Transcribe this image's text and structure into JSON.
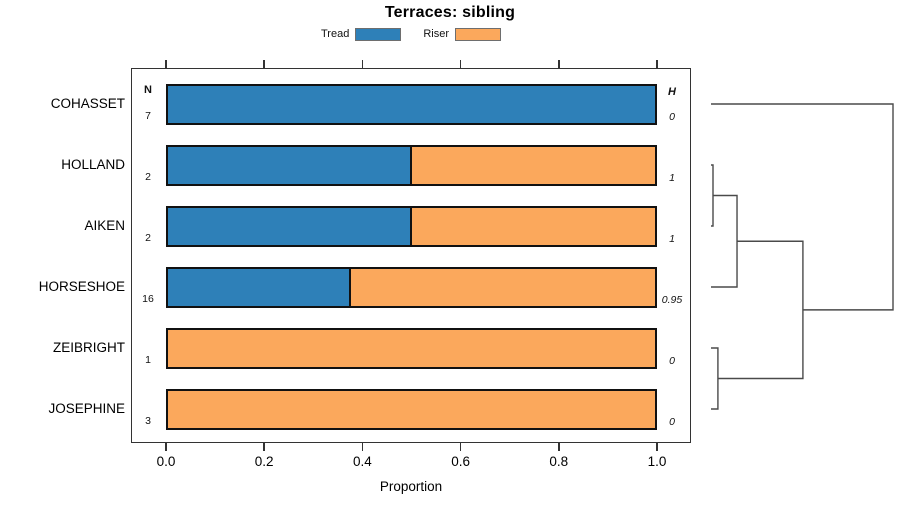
{
  "chart_data": {
    "type": "bar",
    "orientation": "horizontal",
    "stacked": true,
    "title": "Terraces: sibling",
    "xlabel": "Proportion",
    "xlim": [
      0,
      1
    ],
    "xticks": [
      0.0,
      0.2,
      0.4,
      0.6,
      0.8,
      1.0
    ],
    "xtick_labels": [
      "0.0",
      "0.2",
      "0.4",
      "0.6",
      "0.8",
      "1.0"
    ],
    "grid": false,
    "categories": [
      "COHASSET",
      "HOLLAND",
      "AIKEN",
      "HORSESHOE",
      "ZEIBRIGHT",
      "JOSEPHINE"
    ],
    "series": [
      {
        "name": "Tread",
        "color": "#2E80B8",
        "values": [
          1.0,
          0.5,
          0.5,
          0.375,
          0.0,
          0.0
        ]
      },
      {
        "name": "Riser",
        "color": "#FBA85C",
        "values": [
          0.0,
          0.5,
          0.5,
          0.625,
          1.0,
          1.0
        ]
      }
    ],
    "n_column": {
      "header": "N",
      "values": [
        "7",
        "2",
        "2",
        "16",
        "1",
        "3"
      ]
    },
    "h_column": {
      "header": "H",
      "values": [
        "0",
        "1",
        "1",
        "0.95",
        "0",
        "0"
      ]
    },
    "legend": {
      "position": "top",
      "entries": [
        "Tread",
        "Riser"
      ]
    },
    "dendrogram": {
      "side": "right",
      "leaves": [
        "COHASSET",
        "HOLLAND",
        "AIKEN",
        "HORSESHOE",
        "ZEIBRIGHT",
        "JOSEPHINE"
      ],
      "merges": [
        {
          "id": "m1",
          "children": [
            "HOLLAND",
            "AIKEN"
          ],
          "height": 0.011
        },
        {
          "id": "m2",
          "children": [
            "ZEIBRIGHT",
            "JOSEPHINE"
          ],
          "height": 0.038
        },
        {
          "id": "m3",
          "children": [
            "m1",
            "HORSESHOE"
          ],
          "height": 0.143
        },
        {
          "id": "m4",
          "children": [
            "m3",
            "m2"
          ],
          "height": 0.505
        },
        {
          "id": "m5",
          "children": [
            "COHASSET",
            "m4"
          ],
          "height": 1.0
        }
      ]
    }
  }
}
